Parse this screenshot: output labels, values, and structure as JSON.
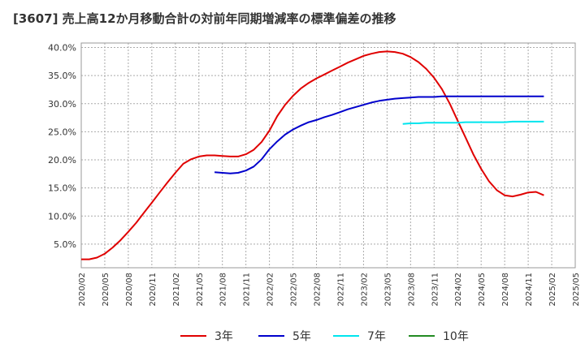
{
  "title": "[3607]  売上高12か月移動合計の対前年同期増減率の標準偏差の推移",
  "chart_data": {
    "type": "line",
    "yticks": [
      "5.0%",
      "10.0%",
      "15.0%",
      "20.0%",
      "25.0%",
      "30.0%",
      "35.0%",
      "40.0%"
    ],
    "ytick_values": [
      5,
      10,
      15,
      20,
      25,
      30,
      35,
      40
    ],
    "ylim": [
      0.8,
      40.8
    ],
    "xticks": [
      "2020/02",
      "2020/05",
      "2020/08",
      "2020/11",
      "2021/02",
      "2021/05",
      "2021/08",
      "2021/11",
      "2022/02",
      "2022/05",
      "2022/08",
      "2022/11",
      "2023/02",
      "2023/05",
      "2023/08",
      "2023/11",
      "2024/02",
      "2024/05",
      "2024/08",
      "2024/11",
      "2025/02",
      "2025/05"
    ],
    "xlim": [
      "2020/02",
      "2025/05"
    ],
    "grid": true,
    "legend_position": "bottom",
    "series": [
      {
        "name": "3年",
        "color": "#e00000",
        "points": [
          [
            "2020/02",
            2.3
          ],
          [
            "2020/03",
            2.3
          ],
          [
            "2020/04",
            2.6
          ],
          [
            "2020/05",
            3.3
          ],
          [
            "2020/06",
            4.4
          ],
          [
            "2020/07",
            5.7
          ],
          [
            "2020/08",
            7.2
          ],
          [
            "2020/09",
            8.8
          ],
          [
            "2020/10",
            10.6
          ],
          [
            "2020/11",
            12.4
          ],
          [
            "2020/12",
            14.2
          ],
          [
            "2021/01",
            16.0
          ],
          [
            "2021/02",
            17.7
          ],
          [
            "2021/03",
            19.3
          ],
          [
            "2021/04",
            20.1
          ],
          [
            "2021/05",
            20.6
          ],
          [
            "2021/06",
            20.8
          ],
          [
            "2021/07",
            20.8
          ],
          [
            "2021/08",
            20.7
          ],
          [
            "2021/09",
            20.6
          ],
          [
            "2021/10",
            20.6
          ],
          [
            "2021/11",
            21.0
          ],
          [
            "2021/12",
            21.8
          ],
          [
            "2022/01",
            23.2
          ],
          [
            "2022/02",
            25.2
          ],
          [
            "2022/03",
            27.8
          ],
          [
            "2022/04",
            29.8
          ],
          [
            "2022/05",
            31.4
          ],
          [
            "2022/06",
            32.7
          ],
          [
            "2022/07",
            33.7
          ],
          [
            "2022/08",
            34.5
          ],
          [
            "2022/09",
            35.2
          ],
          [
            "2022/10",
            35.9
          ],
          [
            "2022/11",
            36.6
          ],
          [
            "2022/12",
            37.3
          ],
          [
            "2023/01",
            37.9
          ],
          [
            "2023/02",
            38.5
          ],
          [
            "2023/03",
            38.9
          ],
          [
            "2023/04",
            39.2
          ],
          [
            "2023/05",
            39.3
          ],
          [
            "2023/06",
            39.2
          ],
          [
            "2023/07",
            38.9
          ],
          [
            "2023/08",
            38.3
          ],
          [
            "2023/09",
            37.4
          ],
          [
            "2023/10",
            36.2
          ],
          [
            "2023/11",
            34.6
          ],
          [
            "2023/12",
            32.6
          ],
          [
            "2024/01",
            30.0
          ],
          [
            "2024/02",
            27.0
          ],
          [
            "2024/03",
            24.0
          ],
          [
            "2024/04",
            21.0
          ],
          [
            "2024/05",
            18.4
          ],
          [
            "2024/06",
            16.2
          ],
          [
            "2024/07",
            14.6
          ],
          [
            "2024/08",
            13.7
          ],
          [
            "2024/09",
            13.5
          ],
          [
            "2024/10",
            13.8
          ],
          [
            "2024/11",
            14.2
          ],
          [
            "2024/12",
            14.3
          ],
          [
            "2025/01",
            13.7
          ]
        ]
      },
      {
        "name": "5年",
        "color": "#0000cc",
        "points": [
          [
            "2021/07",
            17.8
          ],
          [
            "2021/08",
            17.7
          ],
          [
            "2021/09",
            17.6
          ],
          [
            "2021/10",
            17.7
          ],
          [
            "2021/11",
            18.1
          ],
          [
            "2021/12",
            18.8
          ],
          [
            "2022/01",
            20.1
          ],
          [
            "2022/02",
            21.9
          ],
          [
            "2022/03",
            23.3
          ],
          [
            "2022/04",
            24.5
          ],
          [
            "2022/05",
            25.4
          ],
          [
            "2022/06",
            26.1
          ],
          [
            "2022/07",
            26.7
          ],
          [
            "2022/08",
            27.1
          ],
          [
            "2022/09",
            27.6
          ],
          [
            "2022/10",
            28.0
          ],
          [
            "2022/11",
            28.5
          ],
          [
            "2022/12",
            29.0
          ],
          [
            "2023/01",
            29.4
          ],
          [
            "2023/02",
            29.8
          ],
          [
            "2023/03",
            30.2
          ],
          [
            "2023/04",
            30.5
          ],
          [
            "2023/05",
            30.7
          ],
          [
            "2023/06",
            30.9
          ],
          [
            "2023/07",
            31.0
          ],
          [
            "2023/08",
            31.1
          ],
          [
            "2023/09",
            31.2
          ],
          [
            "2023/10",
            31.2
          ],
          [
            "2023/11",
            31.2
          ],
          [
            "2023/12",
            31.3
          ],
          [
            "2024/01",
            31.3
          ],
          [
            "2024/02",
            31.3
          ],
          [
            "2024/03",
            31.3
          ],
          [
            "2024/04",
            31.3
          ],
          [
            "2024/05",
            31.3
          ],
          [
            "2024/06",
            31.3
          ],
          [
            "2024/07",
            31.3
          ],
          [
            "2024/08",
            31.3
          ],
          [
            "2024/09",
            31.3
          ],
          [
            "2024/10",
            31.3
          ],
          [
            "2024/11",
            31.3
          ],
          [
            "2024/12",
            31.3
          ],
          [
            "2025/01",
            31.3
          ]
        ]
      },
      {
        "name": "7年",
        "color": "#00e5ee",
        "points": [
          [
            "2023/07",
            26.4
          ],
          [
            "2023/08",
            26.5
          ],
          [
            "2023/09",
            26.5
          ],
          [
            "2023/10",
            26.6
          ],
          [
            "2023/11",
            26.6
          ],
          [
            "2023/12",
            26.6
          ],
          [
            "2024/01",
            26.6
          ],
          [
            "2024/02",
            26.6
          ],
          [
            "2024/03",
            26.7
          ],
          [
            "2024/04",
            26.7
          ],
          [
            "2024/05",
            26.7
          ],
          [
            "2024/06",
            26.7
          ],
          [
            "2024/07",
            26.7
          ],
          [
            "2024/08",
            26.7
          ],
          [
            "2024/09",
            26.8
          ],
          [
            "2024/10",
            26.8
          ],
          [
            "2024/11",
            26.8
          ],
          [
            "2024/12",
            26.8
          ],
          [
            "2025/01",
            26.8
          ]
        ]
      },
      {
        "name": "10年",
        "color": "#228b22",
        "points": []
      }
    ]
  }
}
